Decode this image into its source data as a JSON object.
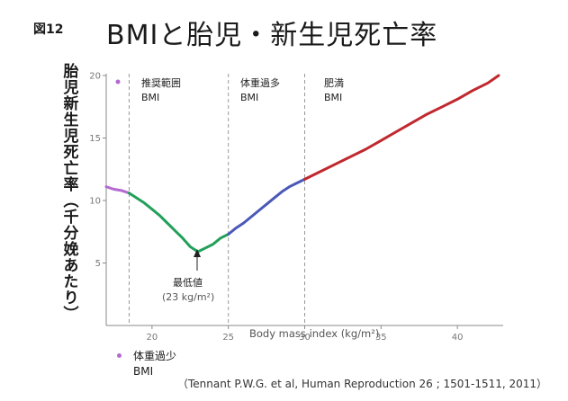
{
  "figure_number": "図12",
  "title": "BMIと胎児・新生児死亡率",
  "ylabel": "胎児新生児死亡率（千分娩あたり）",
  "xlabel": "Body mass index (kg/m²)",
  "citation": "（Tennant P.W.G. et al, Human Reproduction 26 ; 1501-1511, 2011）",
  "regions": [
    {
      "line1": "推奨範囲",
      "line2": "BMI"
    },
    {
      "line1": "体重過多",
      "line2": "BMI"
    },
    {
      "line1": "肥満",
      "line2": "BMI"
    }
  ],
  "underweight": {
    "line1": "体重過少",
    "line2": "BMI"
  },
  "min_annotation": {
    "line1": "最低値",
    "line2": "(23 kg/m²)"
  },
  "colors": {
    "underweight": "#b36ad0",
    "normal": "#22a05a",
    "overweight": "#4a58b8",
    "obese": "#c0282e",
    "axis": "#888888",
    "grid": "#999999"
  },
  "chart_data": {
    "type": "line",
    "xlim": [
      17,
      43
    ],
    "ylim": [
      0,
      20
    ],
    "xticks": [
      20,
      25,
      30,
      35,
      40
    ],
    "yticks": [
      5,
      10,
      15,
      20
    ],
    "cutoffs": [
      18.5,
      25,
      30
    ],
    "minimum": {
      "x": 23,
      "y": 5.9
    },
    "series": [
      {
        "segment": "underweight",
        "x": [
          17,
          17.5,
          18,
          18.5
        ],
        "y": [
          11.1,
          10.9,
          10.8,
          10.6
        ]
      },
      {
        "segment": "normal",
        "x": [
          18.5,
          19,
          19.5,
          20,
          20.5,
          21,
          21.5,
          22,
          22.5,
          23,
          23.5,
          24,
          24.5,
          25
        ],
        "y": [
          10.6,
          10.2,
          9.8,
          9.3,
          8.8,
          8.2,
          7.6,
          7.0,
          6.3,
          5.9,
          6.2,
          6.5,
          7.0,
          7.3
        ]
      },
      {
        "segment": "overweight",
        "x": [
          25,
          25.5,
          26,
          26.5,
          27,
          27.5,
          28,
          28.5,
          29,
          29.5,
          30
        ],
        "y": [
          7.3,
          7.8,
          8.2,
          8.7,
          9.2,
          9.7,
          10.2,
          10.7,
          11.1,
          11.4,
          11.7
        ]
      },
      {
        "segment": "obese",
        "x": [
          30,
          31,
          32,
          33,
          34,
          35,
          36,
          37,
          38,
          39,
          40,
          41,
          42,
          42.7
        ],
        "y": [
          11.7,
          12.3,
          12.9,
          13.5,
          14.1,
          14.8,
          15.5,
          16.2,
          16.9,
          17.5,
          18.1,
          18.8,
          19.4,
          20.0
        ]
      }
    ]
  }
}
